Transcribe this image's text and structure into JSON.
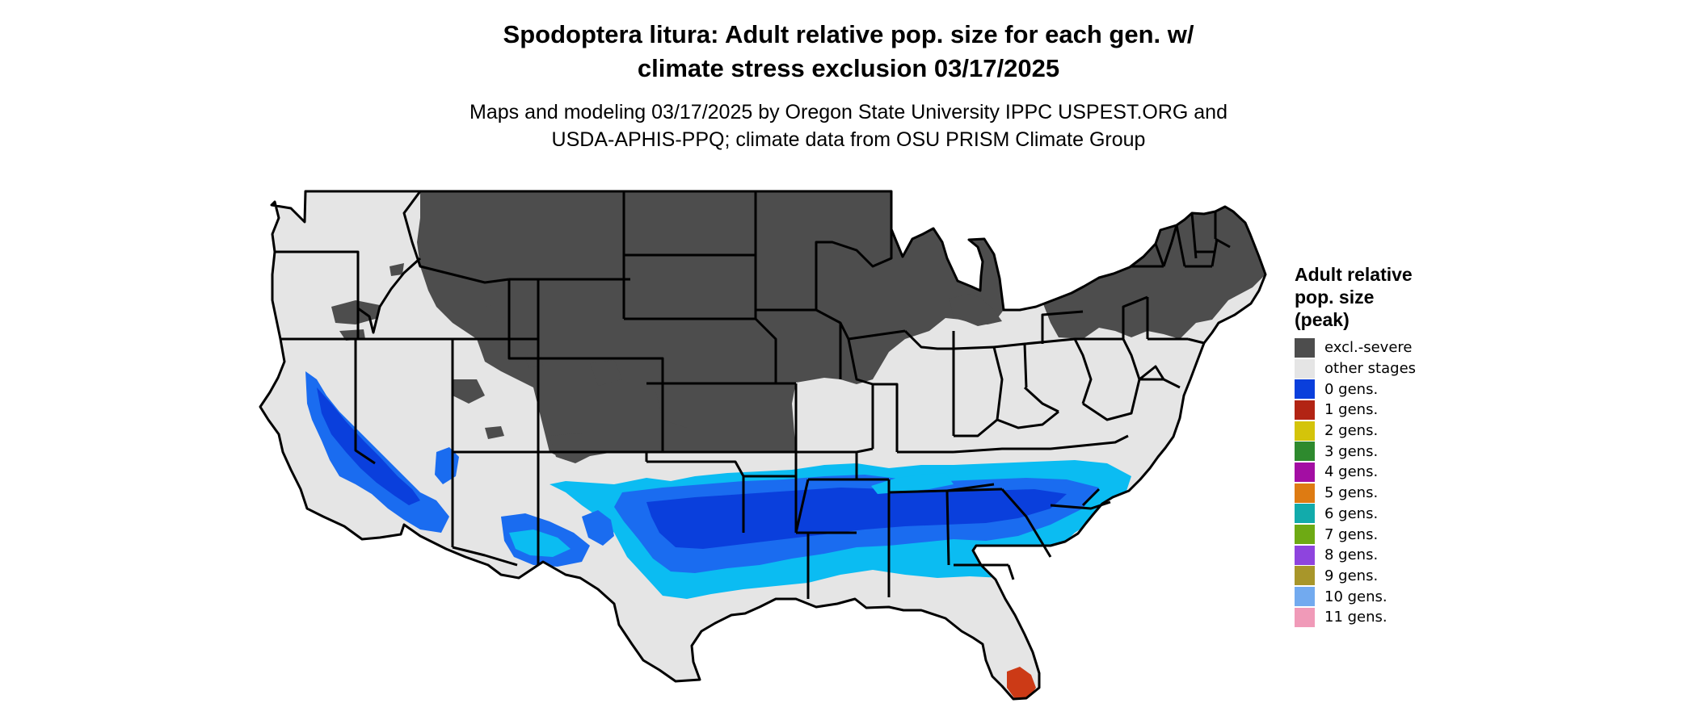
{
  "title": {
    "line1": "Spodoptera litura: Adult relative pop. size for each gen. w/",
    "line2": "climate stress exclusion 03/17/2025"
  },
  "subtitle": {
    "line1": "Maps and modeling 03/17/2025 by Oregon State University IPPC USPEST.ORG and",
    "line2": "USDA-APHIS-PPQ; climate data from OSU PRISM Climate Group"
  },
  "legend": {
    "title_lines": [
      "Adult relative",
      "pop. size",
      "(peak)"
    ],
    "items": [
      {
        "label": "excl.-severe",
        "color": "#4d4d4d"
      },
      {
        "label": "other stages",
        "color": "#e5e5e5"
      },
      {
        "label": "0 gens.",
        "color": "#0a3fdc"
      },
      {
        "label": "1 gens.",
        "color": "#b22414"
      },
      {
        "label": "2 gens.",
        "color": "#d4c40a"
      },
      {
        "label": "3 gens.",
        "color": "#2e8a2e"
      },
      {
        "label": "4 gens.",
        "color": "#a30ea3"
      },
      {
        "label": "5 gens.",
        "color": "#de7b12"
      },
      {
        "label": "6 gens.",
        "color": "#12abab"
      },
      {
        "label": "7 gens.",
        "color": "#6eaa14"
      },
      {
        "label": "8 gens.",
        "color": "#8e44de"
      },
      {
        "label": "9 gens.",
        "color": "#a8962a"
      },
      {
        "label": "10 gens.",
        "color": "#72aaef"
      },
      {
        "label": "11 gens.",
        "color": "#f09ab8"
      }
    ]
  },
  "map_colors": {
    "excluded": "#4d4d4d",
    "other": "#e5e5e5",
    "zero_gens_dark": "#0a3fdc",
    "zero_gens_mid": "#1a6cf0",
    "zero_gens_light": "#0bbcf2",
    "one_gen": "#cc3a16",
    "border": "#000000"
  }
}
